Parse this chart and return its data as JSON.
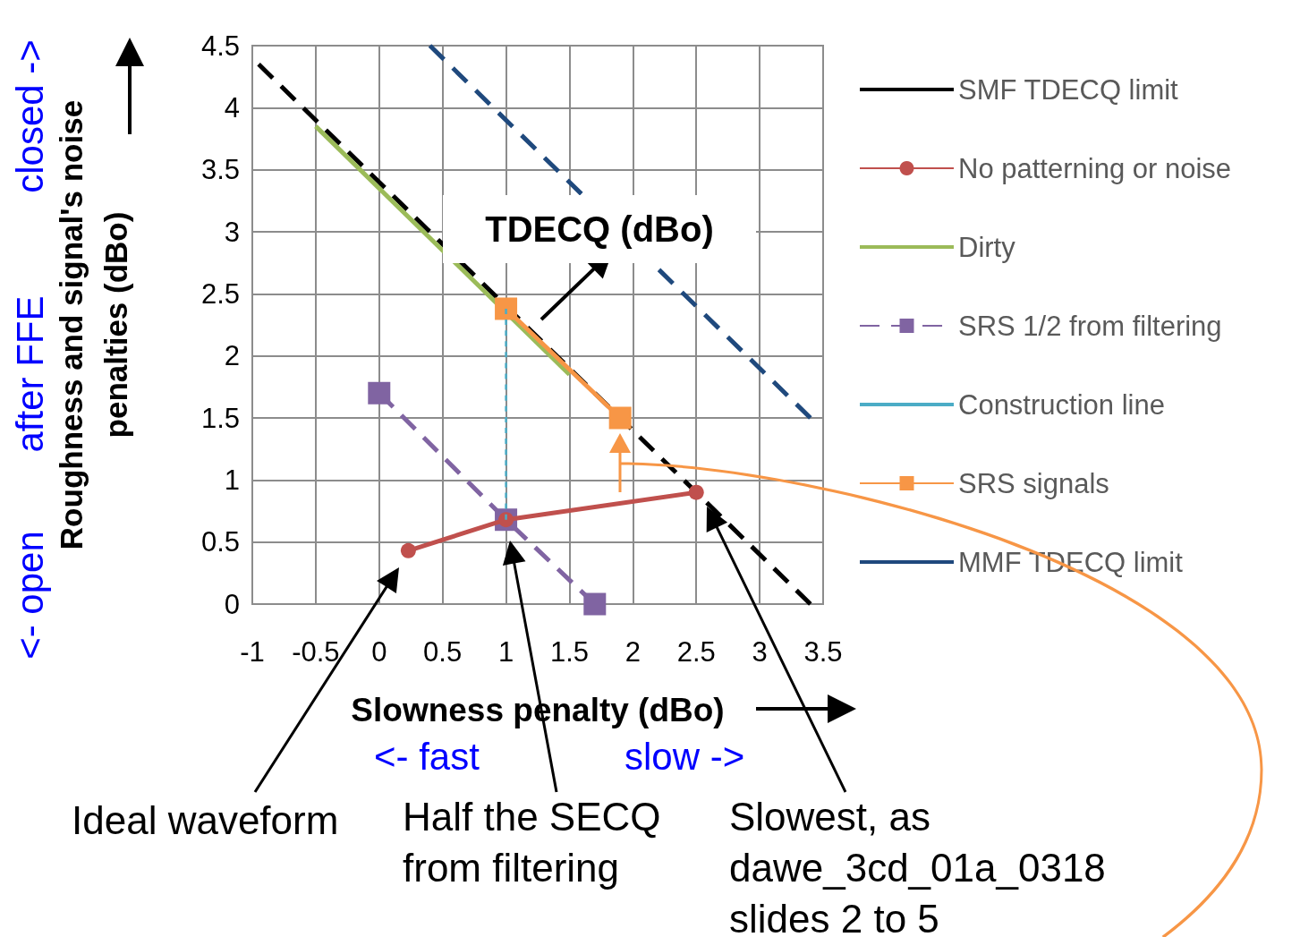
{
  "chart_data": {
    "type": "line",
    "xlabel": "Slowness penalty (dBo)",
    "ylabel": "Roughness and signal's noise penalties (dBo)",
    "xlim": [
      -1,
      3.5
    ],
    "xticks": [
      -1,
      -0.5,
      0,
      0.5,
      1,
      1.5,
      2,
      2.5,
      3,
      3.5
    ],
    "ylim": [
      0,
      4.5
    ],
    "yticks": [
      0,
      0.5,
      1,
      1.5,
      2,
      2.5,
      3,
      3.5,
      4,
      4.5
    ],
    "grid": true,
    "legend": "right",
    "series": [
      {
        "name": "SMF TDECQ limit",
        "color": "#000000",
        "line_style": "dashed",
        "marker": "none",
        "x": [
          -0.95,
          3.4
        ],
        "values": [
          4.35,
          0
        ]
      },
      {
        "name": "No patterning or noise",
        "color": "#c0504d",
        "line_style": "solid",
        "marker": "circle",
        "x": [
          0.23,
          1,
          2.5
        ],
        "values": [
          0.43,
          0.68,
          0.9
        ]
      },
      {
        "name": "Dirty",
        "color": "#9bbb59",
        "line_style": "solid",
        "marker": "none",
        "x": [
          -0.5,
          1.5
        ],
        "values": [
          3.85,
          1.85
        ]
      },
      {
        "name": "SRS 1/2 from filtering",
        "color": "#8064a2",
        "line_style": "dashed",
        "marker": "square",
        "x": [
          0,
          1,
          1.7
        ],
        "values": [
          1.7,
          0.68,
          0
        ]
      },
      {
        "name": "Construction line",
        "color": "#4bacc6",
        "line_style": "dotted",
        "marker": "none",
        "x": [
          1,
          1
        ],
        "values": [
          0.68,
          2.38
        ]
      },
      {
        "name": "SRS signals",
        "color": "#f79646",
        "line_style": "solid",
        "marker": "square",
        "x": [
          1,
          1.9
        ],
        "values": [
          2.38,
          1.5
        ]
      },
      {
        "name": "MMF TDECQ limit",
        "color": "#1f497d",
        "line_style": "dashed",
        "marker": "none",
        "x": [
          0.4,
          3.4
        ],
        "values": [
          4.5,
          1.5
        ]
      }
    ],
    "annotations": [
      "TDECQ (dBo)",
      "<- fast",
      "slow ->",
      "<- open",
      "after FFE",
      "closed ->",
      "Ideal waveform",
      "Half the SECQ from filtering",
      "Slowest, as dawe_3cd_01a_0318 slides 2 to 5"
    ]
  }
}
